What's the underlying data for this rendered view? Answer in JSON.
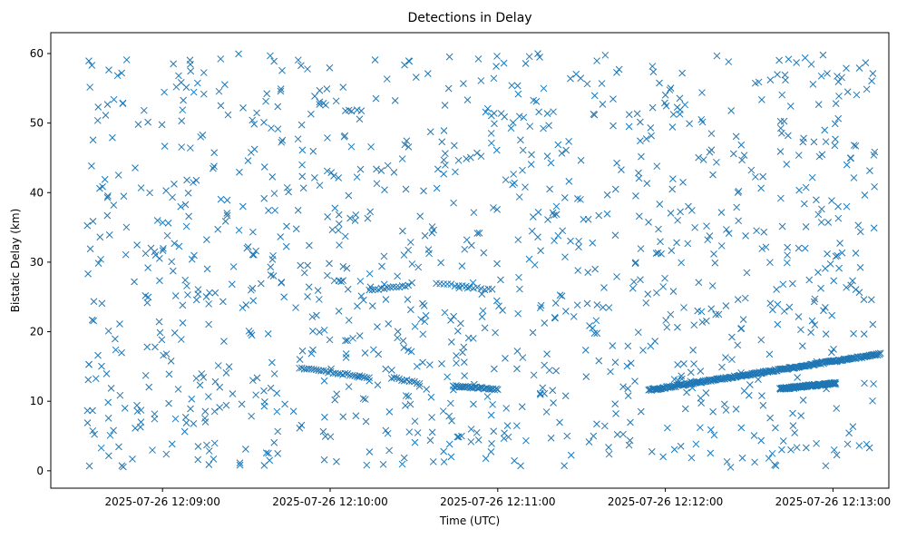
{
  "chart_data": {
    "type": "scatter",
    "title": "Detections in Delay",
    "xlabel": "Time (UTC)",
    "ylabel": "Bistatic Delay (km)",
    "marker": "x",
    "color": "#1f77b4",
    "xlim": [
      "2025-07-26T12:08:20",
      "2025-07-26T12:13:20"
    ],
    "ylim": [
      -2.5,
      63
    ],
    "x_ticks": [
      "2025-07-26 12:09:00",
      "2025-07-26 12:10:00",
      "2025-07-26 12:11:00",
      "2025-07-26 12:12:00",
      "2025-07-26 12:13:00"
    ],
    "y_ticks": [
      0,
      10,
      20,
      30,
      40,
      50,
      60
    ],
    "grid": false,
    "noise": {
      "count": 1150,
      "t_start": "2025-07-26T12:08:33",
      "t_end": "2025-07-26T12:13:15",
      "delay_range": [
        0.5,
        60
      ]
    },
    "tracks": [
      {
        "start": [
          "2025-07-26T12:09:49",
          14.8
        ],
        "end": [
          "2025-07-26T12:10:14",
          13.4
        ],
        "count": 30
      },
      {
        "start": [
          "2025-07-26T12:10:14",
          26.0
        ],
        "end": [
          "2025-07-26T12:10:28",
          26.6
        ],
        "count": 14
      },
      {
        "start": [
          "2025-07-26T12:10:22",
          13.4
        ],
        "end": [
          "2025-07-26T12:10:32",
          12.6
        ],
        "count": 12
      },
      {
        "start": [
          "2025-07-26T12:10:38",
          27.0
        ],
        "end": [
          "2025-07-26T12:10:58",
          26.0
        ],
        "count": 16
      },
      {
        "start": [
          "2025-07-26T12:10:44",
          12.2
        ],
        "end": [
          "2025-07-26T12:11:00",
          11.7
        ],
        "count": 30
      },
      {
        "start": [
          "2025-07-26T12:11:54",
          11.6
        ],
        "end": [
          "2025-07-26T12:13:17",
          16.8
        ],
        "count": 250
      },
      {
        "start": [
          "2025-07-26T12:12:41",
          11.8
        ],
        "end": [
          "2025-07-26T12:13:01",
          12.6
        ],
        "count": 120
      }
    ]
  }
}
